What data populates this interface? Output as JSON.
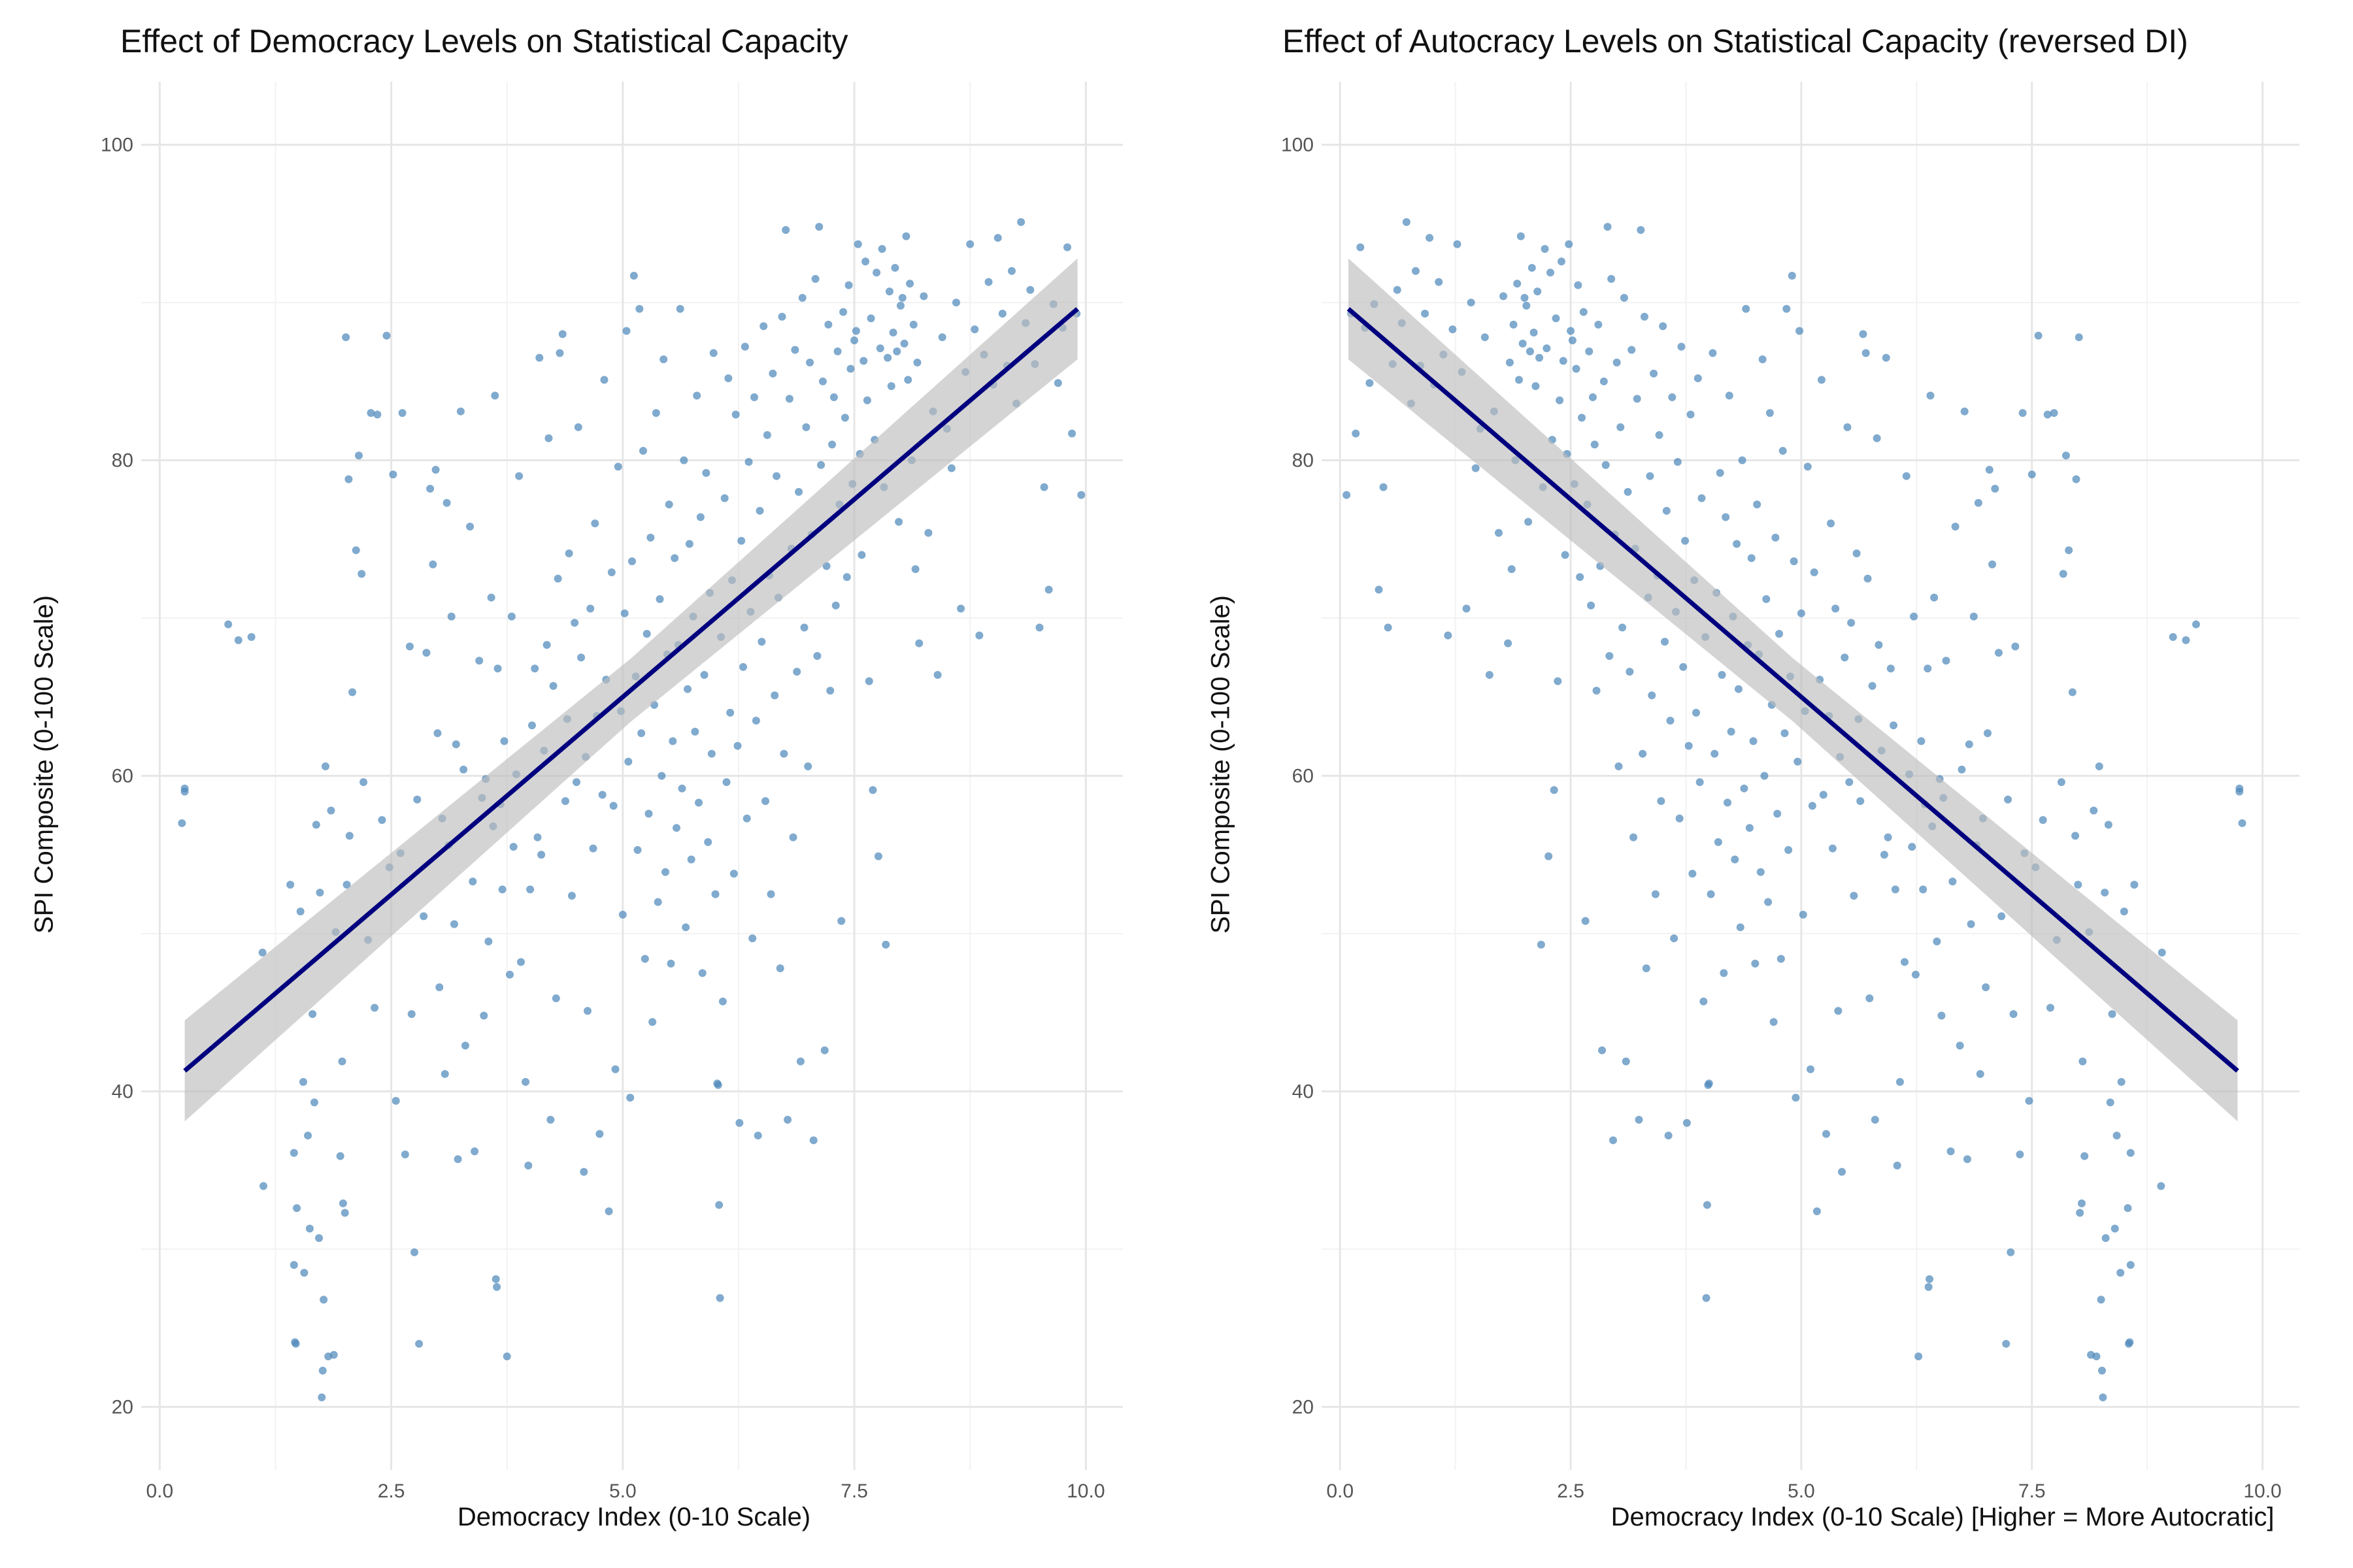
{
  "colors": {
    "point": "#4f89bb",
    "line": "#00007f",
    "band": "#bdbdbd",
    "grid_major": "#e6e6e6",
    "grid_minor": "#f2f2f2"
  },
  "chart_data": [
    {
      "type": "scatter",
      "title": "Effect of Democracy Levels on Statistical Capacity",
      "xlabel": "Democracy Index (0-10 Scale)",
      "ylabel": "SPI Composite (0-100 Scale)",
      "xlim": [
        -0.2,
        10.4
      ],
      "ylim": [
        16,
        104
      ],
      "x_ticks": [
        "0.0",
        "2.5",
        "5.0",
        "7.5",
        "10.0"
      ],
      "y_ticks": [
        "20",
        "40",
        "60",
        "80",
        "100"
      ],
      "grid": true,
      "trend": {
        "x0": 0.27,
        "y0": 41.3,
        "x1": 9.91,
        "y1": 89.6,
        "se_band": 2.0
      },
      "points": [
        [
          0.27,
          59.2
        ],
        [
          0.27,
          59.0
        ],
        [
          0.24,
          57.0
        ],
        [
          0.74,
          69.6
        ],
        [
          0.85,
          68.6
        ],
        [
          0.99,
          68.8
        ],
        [
          1.11,
          48.8
        ],
        [
          1.12,
          34.0
        ],
        [
          1.41,
          53.1
        ],
        [
          1.45,
          36.1
        ],
        [
          1.46,
          24.1
        ],
        [
          1.47,
          24.0
        ],
        [
          1.45,
          29.0
        ],
        [
          1.48,
          32.6
        ],
        [
          1.52,
          51.4
        ],
        [
          1.55,
          40.6
        ],
        [
          1.56,
          28.5
        ],
        [
          1.6,
          37.2
        ],
        [
          1.62,
          31.3
        ],
        [
          1.65,
          44.9
        ],
        [
          1.67,
          39.3
        ],
        [
          1.69,
          56.9
        ],
        [
          1.72,
          30.7
        ],
        [
          1.73,
          52.6
        ],
        [
          1.75,
          20.6
        ],
        [
          1.76,
          22.3
        ],
        [
          1.77,
          26.8
        ],
        [
          1.79,
          60.6
        ],
        [
          1.82,
          23.2
        ],
        [
          1.85,
          57.8
        ],
        [
          1.88,
          23.3
        ],
        [
          1.9,
          50.1
        ],
        [
          1.95,
          35.9
        ],
        [
          1.97,
          41.9
        ],
        [
          1.98,
          32.9
        ],
        [
          2.0,
          32.3
        ],
        [
          2.01,
          87.8
        ],
        [
          2.02,
          53.1
        ],
        [
          2.04,
          78.8
        ],
        [
          2.05,
          56.2
        ],
        [
          2.08,
          65.3
        ],
        [
          2.12,
          74.3
        ],
        [
          2.15,
          80.3
        ],
        [
          2.18,
          72.8
        ],
        [
          2.2,
          59.6
        ],
        [
          2.25,
          49.6
        ],
        [
          2.28,
          83.0
        ],
        [
          2.32,
          45.3
        ],
        [
          2.35,
          82.9
        ],
        [
          2.4,
          57.2
        ],
        [
          2.45,
          87.9
        ],
        [
          2.48,
          54.2
        ],
        [
          2.52,
          79.1
        ],
        [
          2.55,
          39.4
        ],
        [
          2.6,
          55.1
        ],
        [
          2.62,
          83.0
        ],
        [
          2.65,
          36.0
        ],
        [
          2.7,
          68.2
        ],
        [
          2.72,
          44.9
        ],
        [
          2.75,
          29.8
        ],
        [
          2.78,
          58.5
        ],
        [
          2.8,
          24.0
        ],
        [
          2.85,
          51.1
        ],
        [
          2.88,
          67.8
        ],
        [
          2.92,
          78.2
        ],
        [
          2.95,
          73.4
        ],
        [
          2.98,
          79.4
        ],
        [
          3.0,
          62.7
        ],
        [
          3.02,
          46.6
        ],
        [
          3.05,
          57.3
        ],
        [
          3.08,
          41.1
        ],
        [
          3.1,
          77.3
        ],
        [
          3.12,
          55.6
        ],
        [
          3.15,
          70.1
        ],
        [
          3.18,
          50.6
        ],
        [
          3.2,
          62.0
        ],
        [
          3.22,
          35.7
        ],
        [
          3.25,
          83.1
        ],
        [
          3.28,
          60.4
        ],
        [
          3.3,
          42.9
        ],
        [
          3.35,
          75.8
        ],
        [
          3.38,
          53.3
        ],
        [
          3.4,
          36.2
        ],
        [
          3.45,
          67.3
        ],
        [
          3.48,
          58.6
        ],
        [
          3.5,
          44.8
        ],
        [
          3.52,
          59.8
        ],
        [
          3.55,
          49.5
        ],
        [
          3.58,
          71.3
        ],
        [
          3.6,
          56.8
        ],
        [
          3.62,
          84.1
        ],
        [
          3.63,
          28.1
        ],
        [
          3.64,
          27.6
        ],
        [
          3.65,
          66.8
        ],
        [
          3.68,
          58.2
        ],
        [
          3.7,
          52.8
        ],
        [
          3.72,
          62.2
        ],
        [
          3.75,
          23.2
        ],
        [
          3.78,
          47.4
        ],
        [
          3.8,
          70.1
        ],
        [
          3.82,
          55.5
        ],
        [
          3.85,
          60.1
        ],
        [
          3.88,
          79.0
        ],
        [
          3.9,
          48.2
        ],
        [
          3.95,
          40.6
        ],
        [
          3.98,
          35.3
        ],
        [
          4.0,
          52.8
        ],
        [
          4.02,
          63.2
        ],
        [
          4.05,
          66.8
        ],
        [
          4.08,
          56.1
        ],
        [
          4.1,
          86.5
        ],
        [
          4.12,
          55.0
        ],
        [
          4.15,
          61.6
        ],
        [
          4.18,
          68.3
        ],
        [
          4.2,
          81.4
        ],
        [
          4.22,
          38.2
        ],
        [
          4.25,
          65.7
        ],
        [
          4.28,
          45.9
        ],
        [
          4.3,
          72.5
        ],
        [
          4.32,
          86.8
        ],
        [
          4.35,
          88.0
        ],
        [
          4.38,
          58.4
        ],
        [
          4.4,
          63.6
        ],
        [
          4.42,
          74.1
        ],
        [
          4.45,
          52.4
        ],
        [
          4.48,
          69.7
        ],
        [
          4.5,
          59.6
        ],
        [
          4.52,
          82.1
        ],
        [
          4.55,
          67.5
        ],
        [
          4.58,
          34.9
        ],
        [
          4.6,
          61.2
        ],
        [
          4.62,
          45.1
        ],
        [
          4.65,
          70.6
        ],
        [
          4.68,
          55.4
        ],
        [
          4.7,
          76.0
        ],
        [
          4.72,
          63.8
        ],
        [
          4.75,
          37.3
        ],
        [
          4.78,
          58.8
        ],
        [
          4.8,
          85.1
        ],
        [
          4.82,
          66.1
        ],
        [
          4.85,
          32.4
        ],
        [
          4.88,
          72.9
        ],
        [
          4.9,
          58.1
        ],
        [
          4.92,
          41.4
        ],
        [
          4.95,
          79.6
        ],
        [
          4.98,
          64.1
        ],
        [
          5.0,
          51.2
        ],
        [
          5.02,
          70.3
        ],
        [
          5.04,
          88.2
        ],
        [
          5.06,
          60.9
        ],
        [
          5.08,
          39.6
        ],
        [
          5.1,
          73.6
        ],
        [
          5.12,
          91.7
        ],
        [
          5.14,
          66.3
        ],
        [
          5.16,
          55.3
        ],
        [
          5.18,
          89.6
        ],
        [
          5.2,
          62.7
        ],
        [
          5.22,
          80.6
        ],
        [
          5.24,
          48.4
        ],
        [
          5.26,
          69.0
        ],
        [
          5.28,
          57.6
        ],
        [
          5.3,
          75.1
        ],
        [
          5.32,
          44.4
        ],
        [
          5.34,
          64.5
        ],
        [
          5.36,
          83.0
        ],
        [
          5.38,
          52.0
        ],
        [
          5.4,
          71.2
        ],
        [
          5.42,
          60.0
        ],
        [
          5.44,
          86.4
        ],
        [
          5.46,
          53.9
        ],
        [
          5.48,
          67.7
        ],
        [
          5.5,
          77.2
        ],
        [
          5.52,
          48.1
        ],
        [
          5.54,
          62.2
        ],
        [
          5.56,
          73.8
        ],
        [
          5.58,
          56.7
        ],
        [
          5.6,
          68.3
        ],
        [
          5.62,
          89.6
        ],
        [
          5.64,
          59.2
        ],
        [
          5.66,
          80.0
        ],
        [
          5.68,
          50.4
        ],
        [
          5.7,
          65.5
        ],
        [
          5.72,
          74.7
        ],
        [
          5.74,
          54.7
        ],
        [
          5.76,
          70.1
        ],
        [
          5.78,
          62.8
        ],
        [
          5.8,
          84.1
        ],
        [
          5.82,
          58.3
        ],
        [
          5.84,
          76.4
        ],
        [
          5.86,
          47.5
        ],
        [
          5.88,
          66.4
        ],
        [
          5.9,
          79.2
        ],
        [
          5.92,
          55.8
        ],
        [
          5.94,
          71.6
        ],
        [
          5.96,
          61.4
        ],
        [
          5.98,
          86.8
        ],
        [
          6.0,
          52.5
        ],
        [
          6.02,
          40.5
        ],
        [
          6.03,
          40.4
        ],
        [
          6.04,
          32.8
        ],
        [
          6.05,
          26.9
        ],
        [
          6.06,
          68.8
        ],
        [
          6.08,
          45.7
        ],
        [
          6.1,
          77.6
        ],
        [
          6.12,
          59.6
        ],
        [
          6.14,
          85.2
        ],
        [
          6.16,
          64.0
        ],
        [
          6.18,
          72.4
        ],
        [
          6.2,
          53.8
        ],
        [
          6.22,
          82.9
        ],
        [
          6.24,
          61.9
        ],
        [
          6.26,
          38.0
        ],
        [
          6.28,
          74.9
        ],
        [
          6.3,
          66.9
        ],
        [
          6.32,
          87.2
        ],
        [
          6.34,
          57.3
        ],
        [
          6.36,
          79.9
        ],
        [
          6.38,
          70.4
        ],
        [
          6.4,
          49.7
        ],
        [
          6.42,
          84.0
        ],
        [
          6.44,
          63.5
        ],
        [
          6.46,
          37.2
        ],
        [
          6.48,
          76.8
        ],
        [
          6.5,
          68.5
        ],
        [
          6.52,
          88.5
        ],
        [
          6.54,
          58.4
        ],
        [
          6.56,
          81.6
        ],
        [
          6.58,
          72.7
        ],
        [
          6.6,
          52.5
        ],
        [
          6.62,
          85.5
        ],
        [
          6.64,
          65.1
        ],
        [
          6.66,
          79.0
        ],
        [
          6.68,
          71.3
        ],
        [
          6.7,
          47.8
        ],
        [
          6.72,
          89.1
        ],
        [
          6.74,
          61.4
        ],
        [
          6.76,
          94.6
        ],
        [
          6.78,
          38.2
        ],
        [
          6.8,
          83.9
        ],
        [
          6.82,
          74.4
        ],
        [
          6.84,
          56.1
        ],
        [
          6.86,
          87.0
        ],
        [
          6.88,
          66.6
        ],
        [
          6.9,
          78.0
        ],
        [
          6.92,
          41.9
        ],
        [
          6.94,
          90.3
        ],
        [
          6.96,
          69.4
        ],
        [
          6.98,
          82.1
        ],
        [
          7.0,
          60.6
        ],
        [
          7.02,
          86.2
        ],
        [
          7.04,
          75.3
        ],
        [
          7.06,
          36.9
        ],
        [
          7.08,
          91.5
        ],
        [
          7.1,
          67.6
        ],
        [
          7.12,
          94.8
        ],
        [
          7.14,
          79.7
        ],
        [
          7.16,
          85.0
        ],
        [
          7.18,
          42.6
        ],
        [
          7.2,
          73.3
        ],
        [
          7.22,
          88.6
        ],
        [
          7.24,
          65.4
        ],
        [
          7.26,
          81.0
        ],
        [
          7.28,
          84.0
        ],
        [
          7.3,
          70.8
        ],
        [
          7.32,
          86.9
        ],
        [
          7.34,
          77.2
        ],
        [
          7.36,
          50.8
        ],
        [
          7.38,
          89.4
        ],
        [
          7.4,
          82.7
        ],
        [
          7.42,
          72.6
        ],
        [
          7.44,
          91.1
        ],
        [
          7.46,
          85.8
        ],
        [
          7.48,
          78.5
        ],
        [
          7.5,
          87.6
        ],
        [
          7.52,
          88.2
        ],
        [
          7.54,
          93.7
        ],
        [
          7.56,
          80.4
        ],
        [
          7.58,
          74.0
        ],
        [
          7.6,
          86.3
        ],
        [
          7.62,
          92.6
        ],
        [
          7.64,
          83.8
        ],
        [
          7.66,
          66.0
        ],
        [
          7.68,
          89.0
        ],
        [
          7.7,
          59.1
        ],
        [
          7.72,
          81.3
        ],
        [
          7.74,
          91.9
        ],
        [
          7.76,
          54.9
        ],
        [
          7.78,
          87.1
        ],
        [
          7.8,
          93.4
        ],
        [
          7.82,
          78.3
        ],
        [
          7.84,
          49.3
        ],
        [
          7.86,
          86.5
        ],
        [
          7.88,
          90.7
        ],
        [
          7.9,
          84.7
        ],
        [
          7.92,
          88.1
        ],
        [
          7.94,
          92.2
        ],
        [
          7.96,
          86.9
        ],
        [
          7.98,
          76.1
        ],
        [
          8.0,
          89.8
        ],
        [
          8.02,
          90.3
        ],
        [
          8.04,
          87.4
        ],
        [
          8.06,
          94.2
        ],
        [
          8.08,
          85.1
        ],
        [
          8.1,
          91.2
        ],
        [
          8.12,
          80.0
        ],
        [
          8.14,
          88.6
        ],
        [
          8.16,
          73.1
        ],
        [
          8.18,
          86.2
        ],
        [
          8.2,
          68.4
        ],
        [
          8.25,
          90.4
        ],
        [
          8.3,
          75.4
        ],
        [
          8.35,
          83.1
        ],
        [
          8.4,
          66.4
        ],
        [
          8.45,
          87.8
        ],
        [
          8.5,
          82.0
        ],
        [
          8.55,
          79.5
        ],
        [
          8.6,
          90.0
        ],
        [
          8.65,
          70.6
        ],
        [
          8.7,
          85.6
        ],
        [
          8.75,
          93.7
        ],
        [
          8.8,
          88.3
        ],
        [
          8.85,
          68.9
        ],
        [
          8.9,
          86.7
        ],
        [
          8.95,
          91.3
        ],
        [
          9.0,
          84.8
        ],
        [
          9.05,
          94.1
        ],
        [
          9.1,
          89.3
        ],
        [
          9.15,
          86.0
        ],
        [
          9.2,
          92.0
        ],
        [
          9.25,
          83.6
        ],
        [
          9.3,
          95.1
        ],
        [
          9.35,
          88.7
        ],
        [
          9.4,
          90.8
        ],
        [
          9.45,
          86.1
        ],
        [
          9.5,
          69.4
        ],
        [
          9.55,
          78.3
        ],
        [
          9.6,
          71.8
        ],
        [
          9.65,
          89.9
        ],
        [
          9.7,
          84.9
        ],
        [
          9.75,
          88.4
        ],
        [
          9.8,
          93.5
        ],
        [
          9.85,
          81.7
        ],
        [
          9.9,
          89.3
        ],
        [
          9.95,
          77.8
        ]
      ]
    },
    {
      "type": "scatter",
      "title": "Effect of Autocracy Levels on Statistical Capacity (reversed DI)",
      "xlabel": "Democracy Index (0-10 Scale) [Higher = More Autocratic]",
      "ylabel": "SPI Composite (0-100 Scale)",
      "xlim": [
        -0.2,
        10.4
      ],
      "ylim": [
        16,
        104
      ],
      "x_ticks": [
        "0.0",
        "2.5",
        "5.0",
        "7.5",
        "10.0"
      ],
      "y_ticks": [
        "20",
        "40",
        "60",
        "80",
        "100"
      ],
      "grid": true,
      "trend": {
        "x0": 0.09,
        "y0": 89.6,
        "x1": 9.73,
        "y1": 41.3,
        "se_band": 2.0
      },
      "mirror_of_first": true
    }
  ]
}
